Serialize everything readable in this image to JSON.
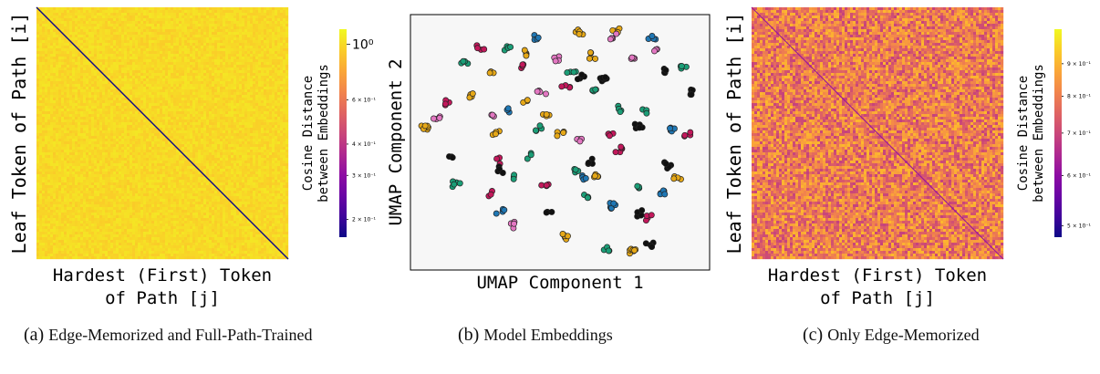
{
  "chart_data": [
    {
      "panel": "a",
      "type": "heatmap",
      "xlabel_line1": "Hardest (First) Token",
      "xlabel_line2": "of Path [j]",
      "ylabel": "Leaf Token of Path [i]",
      "colorbar_label_line1": "Cosine Distance",
      "colorbar_label_line2": "between Embeddings",
      "colorbar_scale": "log",
      "colormap": "plasma",
      "colorbar_range": [
        0.17,
        1.15
      ],
      "colorbar_ticks": [
        {
          "value": 0.2,
          "label": "2 × 10⁻¹"
        },
        {
          "value": 0.3,
          "label": "3 × 10⁻¹"
        },
        {
          "value": 0.4,
          "label": "4 × 10⁻¹"
        },
        {
          "value": 0.6,
          "label": "6 × 10⁻¹"
        },
        {
          "value": 1.0,
          "label": "10⁰"
        }
      ],
      "matrix_summary": {
        "diagonal_value": 0.17,
        "off_diagonal_typical": 1.0,
        "off_diagonal_spread": 0.06
      },
      "caption_label": "(a)",
      "caption_text": "Edge-Memorized and Full-Path-Trained"
    },
    {
      "panel": "b",
      "type": "scatter",
      "xlabel": "UMAP Component 1",
      "ylabel": "UMAP Component 2",
      "xlim": [
        0,
        10
      ],
      "ylim": [
        0,
        10
      ],
      "clusters": [
        {
          "c": "#e6a817",
          "x": 0.5,
          "y": 5.6,
          "n": 6
        },
        {
          "c": "#e6a817",
          "x": 2.9,
          "y": 5.3,
          "n": 4
        },
        {
          "c": "#e6a817",
          "x": 5.0,
          "y": 5.4,
          "n": 4
        },
        {
          "c": "#e6a817",
          "x": 2.0,
          "y": 6.8,
          "n": 5
        },
        {
          "c": "#e6a817",
          "x": 5.6,
          "y": 9.3,
          "n": 5
        },
        {
          "c": "#e6a817",
          "x": 2.7,
          "y": 7.8,
          "n": 4
        },
        {
          "c": "#e6a817",
          "x": 6.1,
          "y": 8.4,
          "n": 5
        },
        {
          "c": "#e6a817",
          "x": 6.9,
          "y": 9.4,
          "n": 4
        },
        {
          "c": "#e6a817",
          "x": 3.9,
          "y": 8.5,
          "n": 4
        },
        {
          "c": "#e6a817",
          "x": 7.4,
          "y": 0.8,
          "n": 7
        },
        {
          "c": "#e6a817",
          "x": 6.2,
          "y": 3.7,
          "n": 5
        },
        {
          "c": "#e6a817",
          "x": 4.6,
          "y": 6.1,
          "n": 4
        },
        {
          "c": "#e6a817",
          "x": 5.2,
          "y": 1.3,
          "n": 6
        },
        {
          "c": "#1f77b4",
          "x": 8.7,
          "y": 5.6,
          "n": 5
        },
        {
          "c": "#1f77b4",
          "x": 6.7,
          "y": 2.5,
          "n": 6
        },
        {
          "c": "#1f77b4",
          "x": 3.3,
          "y": 6.3,
          "n": 4
        },
        {
          "c": "#1f77b4",
          "x": 4.2,
          "y": 9.1,
          "n": 4
        },
        {
          "c": "#1f77b4",
          "x": 8.4,
          "y": 3.0,
          "n": 5
        },
        {
          "c": "#1f77b4",
          "x": 3.0,
          "y": 2.3,
          "n": 4
        },
        {
          "c": "#1f77b4",
          "x": 5.8,
          "y": 3.6,
          "n": 4
        },
        {
          "c": "#c2185b",
          "x": 1.2,
          "y": 6.5,
          "n": 4
        },
        {
          "c": "#c2185b",
          "x": 3.7,
          "y": 8.0,
          "n": 4
        },
        {
          "c": "#c2185b",
          "x": 7.0,
          "y": 4.7,
          "n": 5
        },
        {
          "c": "#c2185b",
          "x": 4.5,
          "y": 3.3,
          "n": 4
        },
        {
          "c": "#c2185b",
          "x": 2.3,
          "y": 8.7,
          "n": 5
        },
        {
          "c": "#c2185b",
          "x": 6.6,
          "y": 5.3,
          "n": 4
        },
        {
          "c": "#c2185b",
          "x": 8.0,
          "y": 2.0,
          "n": 4
        },
        {
          "c": "#c2185b",
          "x": 2.9,
          "y": 4.3,
          "n": 3
        },
        {
          "c": "#c2185b",
          "x": 5.2,
          "y": 7.2,
          "n": 4
        },
        {
          "c": "#1b9e77",
          "x": 1.5,
          "y": 3.4,
          "n": 5
        },
        {
          "c": "#1b9e77",
          "x": 3.3,
          "y": 8.6,
          "n": 4
        },
        {
          "c": "#1b9e77",
          "x": 5.5,
          "y": 3.9,
          "n": 4
        },
        {
          "c": "#1b9e77",
          "x": 6.1,
          "y": 7.1,
          "n": 5
        },
        {
          "c": "#1b9e77",
          "x": 7.0,
          "y": 6.3,
          "n": 4
        },
        {
          "c": "#1b9e77",
          "x": 4.3,
          "y": 5.5,
          "n": 4
        },
        {
          "c": "#1b9e77",
          "x": 7.6,
          "y": 3.2,
          "n": 4
        },
        {
          "c": "#1b9e77",
          "x": 5.9,
          "y": 2.9,
          "n": 4
        },
        {
          "c": "#1b9e77",
          "x": 6.6,
          "y": 0.8,
          "n": 4
        },
        {
          "c": "#1b9e77",
          "x": 5.4,
          "y": 7.8,
          "n": 4
        },
        {
          "c": "#1b9e77",
          "x": 3.5,
          "y": 3.7,
          "n": 3
        },
        {
          "c": "#1b9e77",
          "x": 7.9,
          "y": 6.2,
          "n": 3
        },
        {
          "c": "#111111",
          "x": 6.5,
          "y": 7.5,
          "n": 6
        },
        {
          "c": "#111111",
          "x": 7.6,
          "y": 5.6,
          "n": 6
        },
        {
          "c": "#111111",
          "x": 8.6,
          "y": 4.1,
          "n": 5
        },
        {
          "c": "#111111",
          "x": 6.0,
          "y": 4.2,
          "n": 5
        },
        {
          "c": "#111111",
          "x": 3.0,
          "y": 3.9,
          "n": 4
        },
        {
          "c": "#111111",
          "x": 9.4,
          "y": 7.0,
          "n": 5
        },
        {
          "c": "#111111",
          "x": 7.7,
          "y": 2.2,
          "n": 6
        },
        {
          "c": "#111111",
          "x": 4.6,
          "y": 2.3,
          "n": 3
        },
        {
          "c": "#111111",
          "x": 8.5,
          "y": 7.8,
          "n": 4
        },
        {
          "c": "#111111",
          "x": 1.4,
          "y": 4.5,
          "n": 3
        },
        {
          "c": "#e377c2",
          "x": 6.8,
          "y": 9.1,
          "n": 4
        },
        {
          "c": "#e377c2",
          "x": 7.4,
          "y": 8.2,
          "n": 4
        },
        {
          "c": "#e377c2",
          "x": 0.9,
          "y": 5.9,
          "n": 4
        },
        {
          "c": "#e377c2",
          "x": 4.9,
          "y": 8.2,
          "n": 5
        },
        {
          "c": "#e377c2",
          "x": 4.4,
          "y": 7.0,
          "n": 4
        },
        {
          "c": "#e377c2",
          "x": 5.6,
          "y": 5.1,
          "n": 4
        },
        {
          "c": "#e377c2",
          "x": 3.4,
          "y": 1.8,
          "n": 4
        },
        {
          "c": "#e377c2",
          "x": 8.2,
          "y": 8.5,
          "n": 3
        },
        {
          "c": "#e377c2",
          "x": 2.8,
          "y": 6.1,
          "n": 3
        },
        {
          "c": "#1b9e77",
          "x": 9.1,
          "y": 8.0,
          "n": 4
        },
        {
          "c": "#1f77b4",
          "x": 8.1,
          "y": 9.1,
          "n": 4
        },
        {
          "c": "#c2185b",
          "x": 9.2,
          "y": 5.3,
          "n": 4
        },
        {
          "c": "#e6a817",
          "x": 8.9,
          "y": 3.6,
          "n": 4
        },
        {
          "c": "#111111",
          "x": 5.7,
          "y": 7.5,
          "n": 4
        },
        {
          "c": "#1b9e77",
          "x": 1.8,
          "y": 8.1,
          "n": 4
        },
        {
          "c": "#c2185b",
          "x": 2.6,
          "y": 3.0,
          "n": 3
        },
        {
          "c": "#111111",
          "x": 8.0,
          "y": 1.0,
          "n": 5
        },
        {
          "c": "#1b9e77",
          "x": 4.0,
          "y": 4.5,
          "n": 3
        },
        {
          "c": "#e6a817",
          "x": 3.8,
          "y": 6.6,
          "n": 3
        }
      ],
      "caption_label": "(b)",
      "caption_text": "Model Embeddings"
    },
    {
      "panel": "c",
      "type": "heatmap",
      "xlabel_line1": "Hardest (First) Token",
      "xlabel_line2": "of Path [j]",
      "ylabel": "Leaf Token of Path [i]",
      "colorbar_label_line1": "Cosine Distance",
      "colorbar_label_line2": "between Embeddings",
      "colorbar_scale": "log",
      "colormap": "plasma",
      "colorbar_range": [
        0.48,
        1.02
      ],
      "colorbar_ticks": [
        {
          "value": 0.5,
          "label": "5 × 10⁻¹"
        },
        {
          "value": 0.6,
          "label": "6 × 10⁻¹"
        },
        {
          "value": 0.7,
          "label": "7 × 10⁻¹"
        },
        {
          "value": 0.8,
          "label": "8 × 10⁻¹"
        },
        {
          "value": 0.9,
          "label": "9 × 10⁻¹"
        }
      ],
      "matrix_summary": {
        "diagonal_value": 0.62,
        "off_diagonal_typical": 0.8,
        "off_diagonal_spread": 0.14
      },
      "caption_label": "(c)",
      "caption_text": "Only Edge-Memorized"
    }
  ]
}
